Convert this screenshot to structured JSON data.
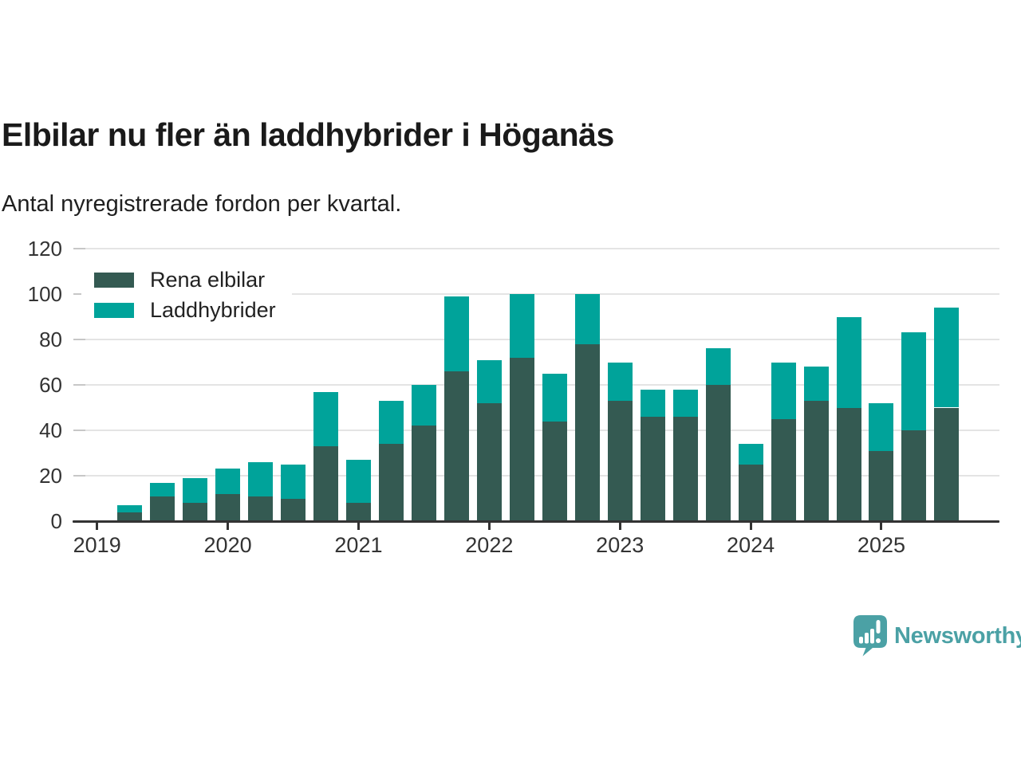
{
  "title": "Elbilar nu fler än laddhybrider i Höganäs",
  "subtitle": "Antal nyregistrerade fordon per kvartal.",
  "legend": [
    {
      "label": "Rena elbilar",
      "color": "#345a52"
    },
    {
      "label": "Laddhybrider",
      "color": "#00a39a"
    }
  ],
  "branding": {
    "name": "Newsworthy",
    "color": "#4ba1a5"
  },
  "colors": {
    "title": "#1a1a1a",
    "axis_text": "#333333",
    "axis_line": "#333333",
    "gridline": "#e4e4e4",
    "background": "#ffffff"
  },
  "chart_data": {
    "type": "bar",
    "stacked": true,
    "title": "Elbilar nu fler än laddhybrider i Höganäs",
    "subtitle": "Antal nyregistrerade fordon per kvartal.",
    "xlabel": "",
    "ylabel": "",
    "x": [
      "2019 Q2",
      "2019 Q3",
      "2019 Q4",
      "2020 Q1",
      "2020 Q2",
      "2020 Q3",
      "2020 Q4",
      "2021 Q1",
      "2021 Q2",
      "2021 Q3",
      "2021 Q4",
      "2022 Q1",
      "2022 Q2",
      "2022 Q3",
      "2022 Q4",
      "2023 Q1",
      "2023 Q2",
      "2023 Q3",
      "2023 Q4",
      "2024 Q1",
      "2024 Q2",
      "2024 Q3",
      "2024 Q4",
      "2025 Q1",
      "2025 Q2",
      "2025 Q3"
    ],
    "series": [
      {
        "name": "Rena elbilar",
        "color": "#345a52",
        "values": [
          4,
          11,
          8,
          12,
          11,
          10,
          33,
          8,
          34,
          42,
          66,
          52,
          72,
          44,
          78,
          53,
          46,
          46,
          60,
          25,
          45,
          53,
          50,
          31,
          40,
          50
        ]
      },
      {
        "name": "Laddhybrider",
        "color": "#00a39a",
        "values": [
          3,
          6,
          11,
          11,
          15,
          15,
          24,
          19,
          19,
          18,
          33,
          19,
          28,
          21,
          22,
          17,
          12,
          12,
          16,
          9,
          25,
          15,
          40,
          21,
          43,
          44
        ]
      }
    ],
    "totals": [
      7,
      17,
      19,
      23,
      26,
      25,
      57,
      27,
      53,
      60,
      99,
      71,
      100,
      65,
      100,
      70,
      58,
      58,
      76,
      34,
      70,
      68,
      90,
      52,
      83,
      94
    ],
    "year_ticks": [
      "2019",
      "2020",
      "2021",
      "2022",
      "2023",
      "2024",
      "2025"
    ],
    "ylim": [
      0,
      120
    ],
    "yticks": [
      0,
      20,
      40,
      60,
      80,
      100,
      120
    ],
    "grid": true,
    "legend_position": "top-left"
  }
}
